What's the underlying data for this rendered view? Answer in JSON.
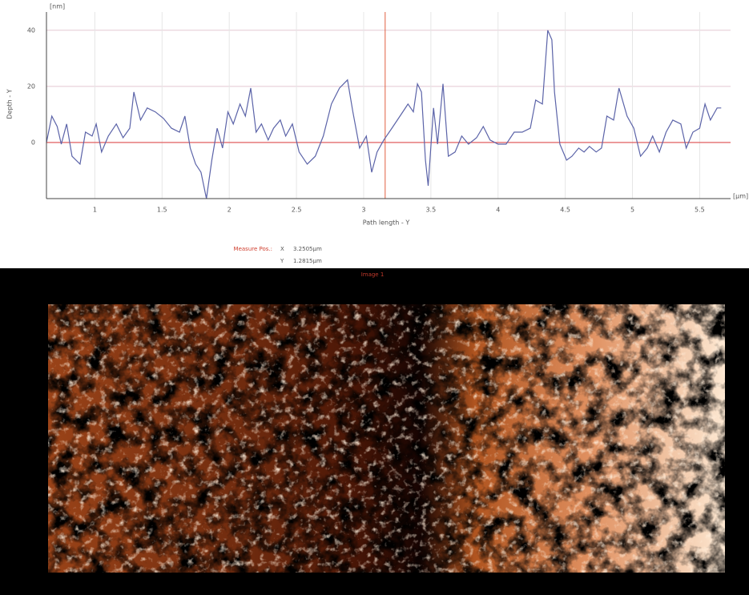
{
  "chart_data": {
    "type": "line",
    "ylabel": "Depth - Y",
    "xlabel": "Path length - Y",
    "y_unit": "[nm]",
    "x_unit": "[µm]",
    "color": "#5b63a8",
    "grid": true,
    "xlim": [
      0.64,
      5.73
    ],
    "ylim": [
      -20,
      46.5
    ],
    "xticks": [
      1,
      1.5,
      2,
      2.5,
      3,
      3.5,
      4,
      4.5,
      5,
      5.5
    ],
    "yticks": [
      0,
      20,
      40
    ],
    "hline": 0,
    "cursor_x": 3.16,
    "x": [
      0.64,
      0.68,
      0.72,
      0.75,
      0.79,
      0.83,
      0.89,
      0.93,
      0.98,
      1.01,
      1.05,
      1.1,
      1.16,
      1.21,
      1.26,
      1.29,
      1.34,
      1.39,
      1.45,
      1.51,
      1.57,
      1.63,
      1.67,
      1.71,
      1.75,
      1.79,
      1.83,
      1.87,
      1.91,
      1.95,
      1.99,
      2.03,
      2.08,
      2.12,
      2.16,
      2.2,
      2.24,
      2.29,
      2.33,
      2.38,
      2.42,
      2.47,
      2.52,
      2.58,
      2.64,
      2.7,
      2.76,
      2.82,
      2.88,
      2.92,
      2.97,
      3.02,
      3.06,
      3.1,
      3.15,
      3.21,
      3.27,
      3.33,
      3.37,
      3.4,
      3.43,
      3.46,
      3.48,
      3.52,
      3.55,
      3.59,
      3.63,
      3.68,
      3.73,
      3.78,
      3.84,
      3.89,
      3.94,
      4.0,
      4.06,
      4.12,
      4.18,
      4.24,
      4.28,
      4.33,
      4.37,
      4.4,
      4.42,
      4.46,
      4.51,
      4.55,
      4.6,
      4.64,
      4.68,
      4.73,
      4.77,
      4.81,
      4.86,
      4.9,
      4.96,
      5.01,
      5.06,
      5.11,
      5.15,
      5.2,
      5.25,
      5.3,
      5.36,
      5.4,
      5.45,
      5.5,
      5.54,
      5.58,
      5.63,
      5.66
    ],
    "values": [
      0,
      9.4,
      5.7,
      -0.6,
      6.6,
      -4.9,
      -7.7,
      3.7,
      2.3,
      6.6,
      -3.4,
      2.3,
      6.6,
      1.7,
      5.1,
      18,
      8,
      12.3,
      10.9,
      8.6,
      5.1,
      3.7,
      9.4,
      -2,
      -7.7,
      -10.6,
      -20,
      -6.3,
      5.1,
      -2,
      10.9,
      6.6,
      13.7,
      9.4,
      19.4,
      3.7,
      6.6,
      0.9,
      5.1,
      8,
      2.3,
      6.6,
      -3.4,
      -7.7,
      -4.9,
      2.3,
      13.7,
      19.4,
      22.3,
      10.9,
      -2,
      2.3,
      -10.6,
      -3.4,
      0.9,
      5.1,
      9.4,
      13.7,
      10.9,
      20.9,
      18,
      -6.3,
      -15.4,
      12.3,
      -0.6,
      20.9,
      -4.9,
      -3.4,
      2.3,
      -0.6,
      1.7,
      5.7,
      0.9,
      -0.6,
      -0.6,
      3.7,
      3.7,
      5.1,
      15.1,
      13.7,
      40,
      36.6,
      18,
      -0.6,
      -6.3,
      -4.9,
      -2,
      -3.4,
      -1.4,
      -3.4,
      -2,
      9.4,
      8,
      19.4,
      9.4,
      5.1,
      -4.9,
      -2,
      2.3,
      -3.4,
      3.7,
      8,
      6.6,
      -2,
      3.7,
      5.1,
      13.7,
      8,
      12.3,
      12.3
    ]
  },
  "measure": {
    "label": "Measure Pos.:",
    "x_label": "X",
    "x_value": "3.2505µm",
    "y_label": "Y",
    "y_value": "1.2815µm"
  },
  "image_panel": {
    "title": "Image 1"
  }
}
